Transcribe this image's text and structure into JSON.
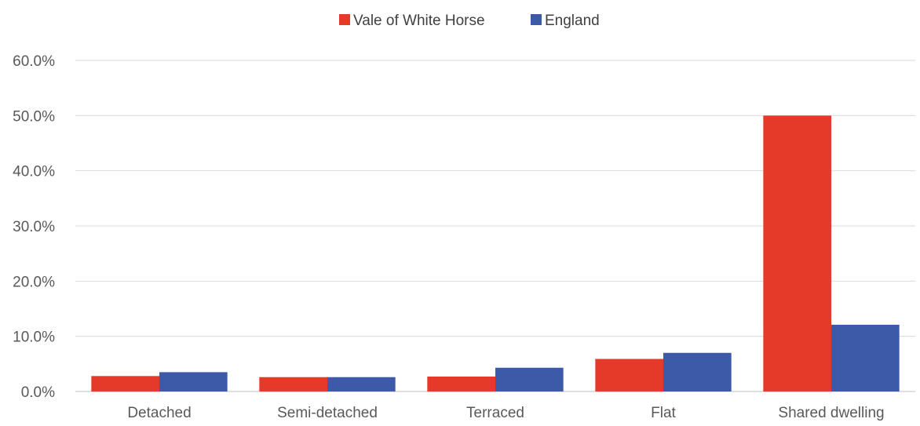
{
  "chart_data": {
    "type": "bar",
    "title": "",
    "xlabel": "",
    "ylabel": "",
    "categories": [
      "Detached",
      "Semi-detached",
      "Terraced",
      "Flat",
      "Shared dwelling"
    ],
    "series": [
      {
        "name": "Vale of White Horse",
        "color": "#e5392a",
        "values": [
          2.8,
          2.6,
          2.7,
          5.9,
          50.0
        ]
      },
      {
        "name": "England",
        "color": "#3d5aa8",
        "values": [
          3.5,
          2.6,
          4.3,
          7.0,
          12.1
        ]
      }
    ],
    "ylim": [
      0,
      60
    ],
    "yticks": [
      "0.0%",
      "10.0%",
      "20.0%",
      "30.0%",
      "40.0%",
      "50.0%",
      "60.0%"
    ],
    "grid": true,
    "legend_position": "top-center"
  }
}
